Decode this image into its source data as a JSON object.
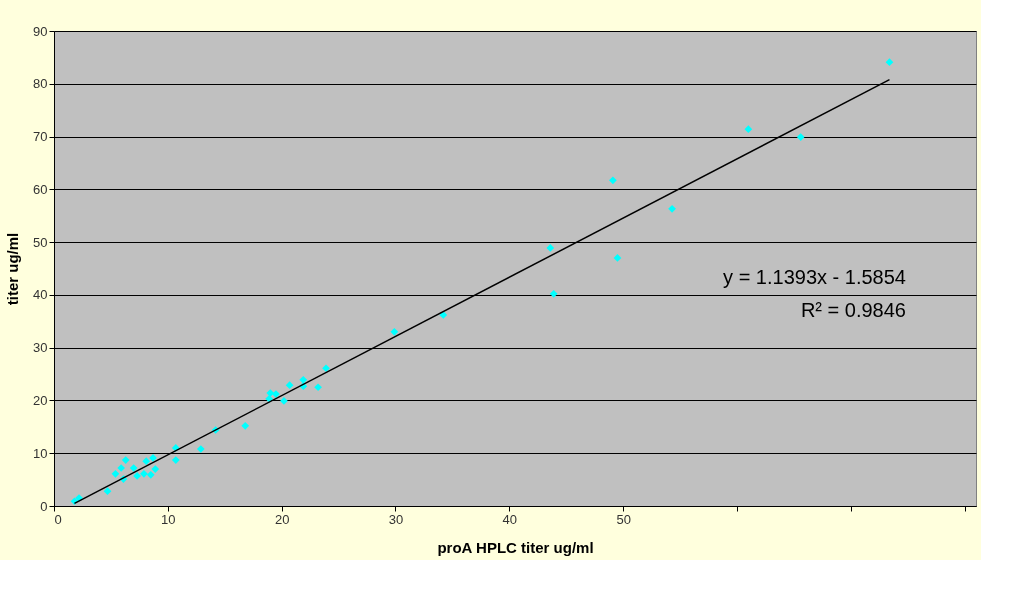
{
  "chart_data": {
    "type": "scatter",
    "xlabel": "proA HPLC titer ug/ml",
    "ylabel": "titer ug/ml",
    "xlim": [
      0,
      81
    ],
    "xticks": [
      0,
      10,
      20,
      30,
      40,
      50,
      {
        "value": 60,
        "label": null
      },
      {
        "value": 70,
        "label": null
      },
      {
        "value": 80,
        "label": null
      }
    ],
    "ylim": [
      0,
      90
    ],
    "yticks": [
      0,
      10,
      20,
      30,
      40,
      50,
      60,
      70,
      80,
      90
    ],
    "grid": "y",
    "marker": "diamond",
    "series": [
      {
        "color": "#00ffff",
        "x": [
          1.8,
          2.2,
          4.7,
          5.4,
          5.9,
          6.3,
          6.1,
          7.0,
          7.3,
          7.9,
          8.1,
          8.7,
          8.5,
          8.9,
          10.7,
          10.7,
          12.9,
          14.2,
          16.8,
          18.9,
          19.0,
          19.5,
          20.2,
          20.7,
          21.9,
          21.9,
          23.2,
          23.9,
          29.9,
          34.2,
          43.6,
          43.9,
          49.1,
          49.5,
          54.3,
          61.0,
          65.6,
          73.4
        ],
        "values": [
          0.9,
          1.5,
          2.8,
          6.1,
          7.2,
          8.7,
          5.1,
          7.2,
          5.7,
          6.1,
          8.5,
          9.1,
          5.9,
          7.0,
          11.0,
          8.7,
          10.8,
          14.4,
          15.2,
          20.3,
          21.4,
          21.2,
          19.9,
          22.9,
          22.7,
          23.9,
          22.5,
          26.1,
          33.0,
          36.2,
          48.9,
          40.2,
          61.7,
          47.0,
          56.3,
          71.4,
          69.9,
          84.1
        ]
      },
      {
        "type": "line",
        "color": "#000000",
        "marker": "none",
        "x": [
          1.8,
          73.4
        ],
        "values": [
          0.5,
          80.8
        ]
      }
    ],
    "annotations": [
      "y = 1.1393x - 1.5854",
      "R² = 0.9846"
    ]
  }
}
